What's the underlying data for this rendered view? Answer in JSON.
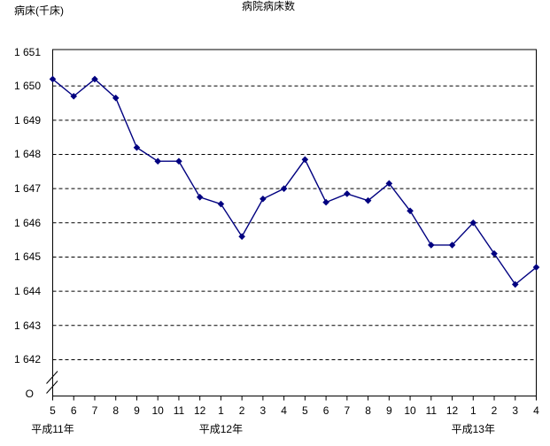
{
  "chart_data": {
    "type": "line",
    "title": "病院病床数",
    "y_axis_title": "病床(千床)",
    "origin_label": "O",
    "legend": "none",
    "grid": "dashed-horizontal",
    "axis_break": true,
    "ylim": [
      1642,
      1651
    ],
    "y_ticks": [
      {
        "value": 1651,
        "label": "1 651"
      },
      {
        "value": 1650,
        "label": "1 650"
      },
      {
        "value": 1649,
        "label": "1 649"
      },
      {
        "value": 1648,
        "label": "1 648"
      },
      {
        "value": 1647,
        "label": "1 647"
      },
      {
        "value": 1646,
        "label": "1 646"
      },
      {
        "value": 1645,
        "label": "1 645"
      },
      {
        "value": 1644,
        "label": "1 644"
      },
      {
        "value": 1643,
        "label": "1 643"
      },
      {
        "value": 1642,
        "label": "1 642"
      }
    ],
    "x_tick_labels": [
      "5",
      "6",
      "7",
      "8",
      "9",
      "10",
      "11",
      "12",
      "1",
      "2",
      "3",
      "4",
      "5",
      "6",
      "7",
      "8",
      "9",
      "10",
      "11",
      "12",
      "1",
      "2",
      "3",
      "4"
    ],
    "era_labels": [
      {
        "label": "平成11年",
        "tick_index": 0
      },
      {
        "label": "平成12年",
        "tick_index": 8
      },
      {
        "label": "平成13年",
        "tick_index": 20
      }
    ],
    "series": [
      {
        "name": "病院病床数",
        "values": [
          1650.2,
          1649.7,
          1650.2,
          1649.65,
          1648.2,
          1647.8,
          1647.8,
          1646.75,
          1646.55,
          1645.6,
          1646.7,
          1647.0,
          1647.85,
          1646.6,
          1646.85,
          1646.65,
          1647.15,
          1646.35,
          1645.35,
          1645.35,
          1646.0,
          1645.1,
          1644.2,
          1644.7
        ]
      }
    ],
    "colors": {
      "line": "#000080",
      "marker": "#000080",
      "grid": "#000000",
      "frame": "#000000",
      "text": "#000000",
      "background": "#ffffff"
    }
  }
}
